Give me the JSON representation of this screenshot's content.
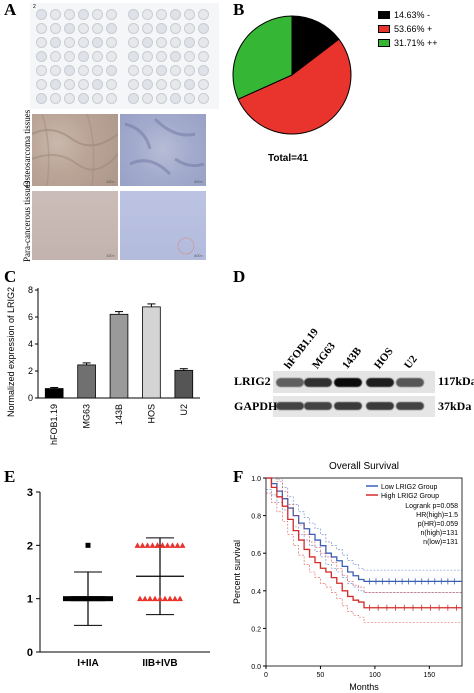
{
  "panels": {
    "a": "A",
    "b": "B",
    "c": "C",
    "d": "D",
    "e": "E",
    "f": "F"
  },
  "panel_a": {
    "tma_note": "2",
    "row_labels": [
      "Osteosarcoma tissues",
      "Para-cancerous tissues"
    ],
    "scale_labels": [
      "100×",
      "400×",
      "100×",
      "400×"
    ]
  },
  "panel_b": {
    "total_label": "Total=41",
    "legend": [
      {
        "label": "14.63%  -",
        "color": "#000000"
      },
      {
        "label": "53.66%  +",
        "color": "#e8342c"
      },
      {
        "label": "31.71%  ++",
        "color": "#35b634"
      }
    ]
  },
  "panel_d": {
    "lanes": [
      "hFOB1.19",
      "MG63",
      "143B",
      "HOS",
      "U2"
    ],
    "rows": [
      {
        "label": "LRIG2",
        "size": "117kDa",
        "intensity": [
          0.55,
          0.8,
          1.0,
          0.9,
          0.6
        ]
      },
      {
        "label": "GAPDH",
        "size": "37kDa",
        "intensity": [
          0.7,
          0.7,
          0.75,
          0.75,
          0.7
        ]
      }
    ]
  },
  "chart_data": [
    {
      "type": "bar",
      "panel": "C",
      "categories": [
        "hFOB1.19",
        "MG63",
        "143B",
        "HOS",
        "U2"
      ],
      "values": [
        0.7,
        2.45,
        6.2,
        6.75,
        2.05
      ],
      "errors": [
        0.08,
        0.15,
        0.2,
        0.22,
        0.12
      ],
      "colors": [
        "#000000",
        "#707070",
        "#9a9a9a",
        "#d4d4d4",
        "#555555"
      ],
      "ylabel": "Normalized expression of LRIG2",
      "ylim": [
        0,
        8
      ],
      "yticks": [
        0,
        2,
        4,
        6,
        8
      ]
    },
    {
      "type": "scatter",
      "panel": "E",
      "categories": [
        "I+IIA",
        "IIB+IVB"
      ],
      "ylim": [
        0,
        3
      ],
      "yticks": [
        0,
        1,
        2,
        3
      ],
      "groups": [
        {
          "name": "I+IIA",
          "mean": 1.0,
          "sd": 0.5,
          "n_at_1": 17,
          "n_at_2": 1,
          "color": "#000000",
          "marker": "square"
        },
        {
          "name": "IIB+IVB",
          "mean": 1.42,
          "sd": 0.72,
          "n_at_1": 9,
          "n_at_2": 12,
          "color": "#e8342c",
          "marker": "triangle"
        }
      ]
    },
    {
      "type": "line",
      "panel": "F",
      "title": "Overall Survival",
      "xlabel": "Months",
      "ylabel": "Percent survival",
      "xlim": [
        0,
        180
      ],
      "ylim": [
        0,
        1
      ],
      "xticks": [
        0,
        50,
        100,
        150
      ],
      "yticks": [
        0.0,
        0.2,
        0.4,
        0.6,
        0.8,
        1.0
      ],
      "legend": [
        "Low LRIG2 Group",
        "High LRIG2 Group"
      ],
      "stats": [
        "Logrank p=0.058",
        "HR(high)=1.5",
        "p(HR)=0.059",
        "n(high)=131",
        "n(low)=131"
      ],
      "series": [
        {
          "name": "Low LRIG2 Group",
          "color": "#3b5fb5",
          "x": [
            0,
            5,
            10,
            15,
            20,
            25,
            30,
            35,
            40,
            45,
            50,
            55,
            60,
            65,
            70,
            75,
            80,
            85,
            90,
            95,
            180
          ],
          "y": [
            1.0,
            0.97,
            0.93,
            0.89,
            0.84,
            0.8,
            0.76,
            0.73,
            0.7,
            0.67,
            0.64,
            0.6,
            0.58,
            0.56,
            0.53,
            0.5,
            0.48,
            0.46,
            0.45,
            0.45,
            0.45
          ]
        },
        {
          "name": "High LRIG2 Group",
          "color": "#d42a2a",
          "x": [
            0,
            5,
            10,
            15,
            20,
            25,
            30,
            35,
            40,
            45,
            50,
            55,
            60,
            65,
            70,
            75,
            80,
            85,
            90,
            95,
            180
          ],
          "y": [
            1.0,
            0.95,
            0.9,
            0.85,
            0.78,
            0.72,
            0.67,
            0.62,
            0.58,
            0.55,
            0.52,
            0.5,
            0.47,
            0.44,
            0.4,
            0.37,
            0.35,
            0.34,
            0.31,
            0.31,
            0.31
          ]
        }
      ]
    }
  ]
}
